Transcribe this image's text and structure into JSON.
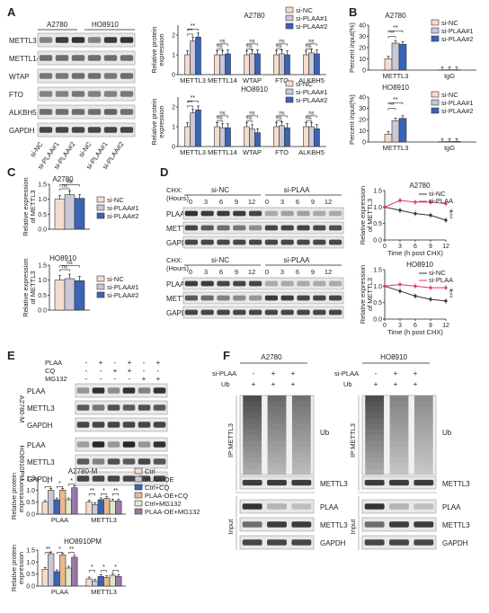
{
  "panel_letters": [
    "A",
    "B",
    "C",
    "D",
    "E",
    "F"
  ],
  "panelA": {
    "cell_lines": [
      "A2780",
      "HO8910"
    ],
    "blot_labels": [
      "METTL3",
      "METTL14",
      "WTAP",
      "FTO",
      "ALKBH5",
      "GAPDH"
    ],
    "lane_labels": [
      "si-NC",
      "si-PLAA#1",
      "si-PLAA#2",
      "si-NC",
      "si-PLAA#1",
      "si-PLAA#2"
    ]
  },
  "legend3": [
    "si-NC",
    "si-PLAA#1",
    "si-PLAA#2"
  ],
  "panelD": {
    "chx_label": "CHX:",
    "hours_label": "(Hours)",
    "groups": [
      "si-NC",
      "si-PLAA"
    ],
    "hours": [
      "0",
      "3",
      "6",
      "9",
      "12",
      "0",
      "3",
      "6",
      "9",
      "12"
    ],
    "blot_labels": [
      "PLAA",
      "METTL3",
      "GAPDH"
    ],
    "sig_marks": [
      "#",
      "‡"
    ]
  },
  "panelE": {
    "treat_labels": [
      "PLAA",
      "CQ",
      "MG132"
    ],
    "treat_signs": [
      [
        "-",
        "+",
        "-",
        "+",
        "-",
        "+"
      ],
      [
        "-",
        "-",
        "+",
        "+",
        "-",
        "-"
      ],
      [
        "-",
        "-",
        "-",
        "-",
        "+",
        "+"
      ]
    ],
    "blot_labels": [
      "PLAA",
      "METTL3",
      "GAPDH"
    ],
    "side_labels": [
      "A2780-M",
      "HO8910PM"
    ]
  },
  "panelF": {
    "cell_lines": [
      "A2780",
      "HO8910"
    ],
    "row_labels": [
      "si-PLAA",
      "Ub"
    ],
    "row_signs": [
      [
        "-",
        "+",
        "+"
      ],
      [
        "+",
        "+",
        "+"
      ]
    ],
    "ip_label": "IP:METTL3",
    "input_label": "Input",
    "ip_blots": [
      "Ub",
      "METTL3"
    ],
    "input_blots": [
      "PLAA",
      "METTL3",
      "GAPDH"
    ]
  },
  "chart_data": [
    {
      "id": "A-A2780",
      "type": "bar",
      "title": "A2780",
      "ylabel": "Relative protein expression",
      "ylim": [
        0,
        2.5
      ],
      "yticks": [
        "0",
        "1",
        "2"
      ],
      "categories": [
        "METTL3",
        "METTL14",
        "WTAP",
        "FTO",
        "ALKBH5"
      ],
      "series": [
        {
          "name": "si-NC",
          "values": [
            1,
            1,
            1,
            1,
            1
          ],
          "color": "#f4dccc"
        },
        {
          "name": "si-PLAA#1",
          "values": [
            1.7,
            1.0,
            1.05,
            1.05,
            1.1
          ],
          "color": "#c8c8d8"
        },
        {
          "name": "si-PLAA#2",
          "values": [
            1.9,
            1.05,
            1.05,
            1.0,
            1.05
          ],
          "color": "#3a64b4"
        }
      ],
      "annotations": [
        "**",
        "**",
        "ns",
        "ns",
        "ns",
        "ns",
        "ns",
        "ns",
        "ns",
        "ns"
      ]
    },
    {
      "id": "A-HO8910",
      "type": "bar",
      "title": "HO8910",
      "ylabel": "Relative protein expression",
      "ylim": [
        0,
        2.5
      ],
      "yticks": [
        "0",
        "1",
        "2"
      ],
      "categories": [
        "METTL3",
        "METTL14",
        "WTAP",
        "FTO",
        "ALKBH5"
      ],
      "series": [
        {
          "name": "si-NC",
          "values": [
            1,
            1,
            1,
            1,
            1
          ],
          "color": "#f4dccc"
        },
        {
          "name": "si-PLAA#1",
          "values": [
            1.7,
            0.95,
            0.9,
            1.05,
            1.0
          ],
          "color": "#c8c8d8"
        },
        {
          "name": "si-PLAA#2",
          "values": [
            1.85,
            0.95,
            0.7,
            0.95,
            0.9
          ],
          "color": "#3a64b4"
        }
      ],
      "annotations": [
        "**",
        "**",
        "ns",
        "ns",
        "ns",
        "ns",
        "ns",
        "ns",
        "ns",
        "ns"
      ]
    },
    {
      "id": "B-A2780",
      "type": "bar",
      "title": "A2780",
      "ylabel": "Percent input(%)",
      "ylim": [
        0,
        40
      ],
      "yticks": [
        "0",
        "10",
        "20",
        "30",
        "40"
      ],
      "categories": [
        "METTL3",
        "IgG"
      ],
      "series": [
        {
          "name": "si-NC",
          "values": [
            10,
            0.2
          ],
          "color": "#f4dccc"
        },
        {
          "name": "si-PLAA#1",
          "values": [
            24,
            0.3
          ],
          "color": "#c8c8d8"
        },
        {
          "name": "si-PLAA#2",
          "values": [
            23,
            0.3
          ],
          "color": "#3a64b4"
        }
      ],
      "annotations": [
        "**",
        "**"
      ]
    },
    {
      "id": "B-HO8910",
      "type": "bar",
      "title": "HO8910",
      "ylabel": "Percent input(%)",
      "ylim": [
        0,
        40
      ],
      "yticks": [
        "0",
        "10",
        "20",
        "30",
        "40"
      ],
      "categories": [
        "METTL3",
        "IgG"
      ],
      "series": [
        {
          "name": "si-NC",
          "values": [
            7,
            0.3
          ],
          "color": "#f4dccc"
        },
        {
          "name": "si-PLAA#1",
          "values": [
            19,
            0.4
          ],
          "color": "#c8c8d8"
        },
        {
          "name": "si-PLAA#2",
          "values": [
            21,
            0.5
          ],
          "color": "#3a64b4"
        }
      ],
      "annotations": [
        "**",
        "**"
      ]
    },
    {
      "id": "C-A2780",
      "type": "bar",
      "title": "A2780",
      "ylabel": "Relative expression of METTL3",
      "ylim": [
        0,
        1.5
      ],
      "yticks": [
        "0.0",
        "0.5",
        "1.0",
        "1.5"
      ],
      "categories": [
        ""
      ],
      "series": [
        {
          "name": "si-NC",
          "values": [
            1.0
          ],
          "color": "#f4dccc"
        },
        {
          "name": "si-PLAA#1",
          "values": [
            1.15
          ],
          "color": "#c8c8d8"
        },
        {
          "name": "si-PLAA#2",
          "values": [
            1.03
          ],
          "color": "#3a64b4"
        }
      ],
      "annotations": [
        "ns",
        "ns"
      ]
    },
    {
      "id": "C-HO8910",
      "type": "bar",
      "title": "HO8910",
      "ylabel": "Relative expression of METTL3",
      "ylim": [
        0,
        1.5
      ],
      "yticks": [
        "0.0",
        "0.5",
        "1.0",
        "1.5"
      ],
      "categories": [
        ""
      ],
      "series": [
        {
          "name": "si-NC",
          "values": [
            1.0
          ],
          "color": "#f4dccc"
        },
        {
          "name": "si-PLAA#1",
          "values": [
            1.05
          ],
          "color": "#c8c8d8"
        },
        {
          "name": "si-PLAA#2",
          "values": [
            0.98
          ],
          "color": "#3a64b4"
        }
      ],
      "annotations": [
        "ns",
        "ns"
      ]
    },
    {
      "id": "D-A2780",
      "type": "line",
      "title": "A2780",
      "xlabel": "Time (h post CHX)",
      "ylabel": "Relative expression of METTL3",
      "xlim": [
        0,
        12
      ],
      "ylim": [
        0,
        1.5
      ],
      "xticks": [
        "0",
        "3",
        "6",
        "9",
        "12"
      ],
      "yticks": [
        "0.0",
        "0.5",
        "1.0",
        "1.5"
      ],
      "x": [
        0,
        3,
        6,
        9,
        12
      ],
      "series": [
        {
          "name": "si-NC",
          "values": [
            1.0,
            0.9,
            0.8,
            0.75,
            0.6
          ],
          "color": "#333333"
        },
        {
          "name": "si-PLAA",
          "values": [
            1.0,
            1.2,
            1.15,
            1.15,
            1.1
          ],
          "color": "#d43c5a"
        }
      ]
    },
    {
      "id": "D-HO8910",
      "type": "line",
      "title": "HO8910",
      "xlabel": "Time (h post CHX)",
      "ylabel": "Relative expression of METTL3",
      "xlim": [
        0,
        12
      ],
      "ylim": [
        0,
        1.5
      ],
      "xticks": [
        "0",
        "3",
        "6",
        "9",
        "12"
      ],
      "yticks": [
        "0.0",
        "0.5",
        "1.0",
        "1.5"
      ],
      "x": [
        0,
        3,
        6,
        9,
        12
      ],
      "series": [
        {
          "name": "si-NC",
          "values": [
            1.0,
            0.85,
            0.7,
            0.6,
            0.55
          ],
          "color": "#333333"
        },
        {
          "name": "si-PLAA",
          "values": [
            1.0,
            1.05,
            1.0,
            0.95,
            0.95
          ],
          "color": "#d43c5a"
        }
      ]
    },
    {
      "id": "E-A2780M",
      "type": "bar",
      "title": "A2780-M",
      "ylabel": "Relative protein expression",
      "ylim": [
        0,
        1.5
      ],
      "yticks": [
        "0.0",
        "0.5",
        "1.0",
        "1.5"
      ],
      "categories": [
        "PLAA",
        "METTL3"
      ],
      "series": [
        {
          "name": "Ctrl",
          "values": [
            0.5,
            0.5
          ],
          "color": "#f4dccc"
        },
        {
          "name": "PLAA-OE",
          "values": [
            1.0,
            0.4
          ],
          "color": "#c8c8d8"
        },
        {
          "name": "Ctrl+CQ",
          "values": [
            0.6,
            0.6
          ],
          "color": "#3a64b4"
        },
        {
          "name": "PLAA-OE+CQ",
          "values": [
            1.0,
            0.65
          ],
          "color": "#e9b98c"
        },
        {
          "name": "Ctrl+MG132",
          "values": [
            0.6,
            0.55
          ],
          "color": "#e0e8c8"
        },
        {
          "name": "PLAA-OE+MG132",
          "values": [
            1.1,
            0.55
          ],
          "color": "#9a78a8"
        }
      ],
      "annotations": [
        "*",
        "*",
        "*",
        "**",
        "*",
        "**"
      ]
    },
    {
      "id": "E-HO8910PM",
      "type": "bar",
      "title": "HO8910PM",
      "ylabel": "Relative protein expression",
      "ylim": [
        0,
        1.5
      ],
      "yticks": [
        "0.0",
        "0.5",
        "1.0",
        "1.5"
      ],
      "categories": [
        "PLAA",
        "METTL3"
      ],
      "series": [
        {
          "name": "Ctrl",
          "values": [
            0.7,
            0.3
          ],
          "color": "#f4dccc"
        },
        {
          "name": "PLAA-OE",
          "values": [
            1.35,
            0.2
          ],
          "color": "#c8c8d8"
        },
        {
          "name": "Ctrl+CQ",
          "values": [
            0.6,
            0.4
          ],
          "color": "#3a64b4"
        },
        {
          "name": "PLAA-OE+CQ",
          "values": [
            1.3,
            0.35
          ],
          "color": "#e9b98c"
        },
        {
          "name": "Ctrl+MG132",
          "values": [
            0.75,
            0.45
          ],
          "color": "#e0e8c8"
        },
        {
          "name": "PLAA-OE+MG132",
          "values": [
            1.2,
            0.4
          ],
          "color": "#9a78a8"
        }
      ],
      "annotations": [
        "**",
        "*",
        "**",
        "*",
        "*",
        "*"
      ]
    }
  ]
}
